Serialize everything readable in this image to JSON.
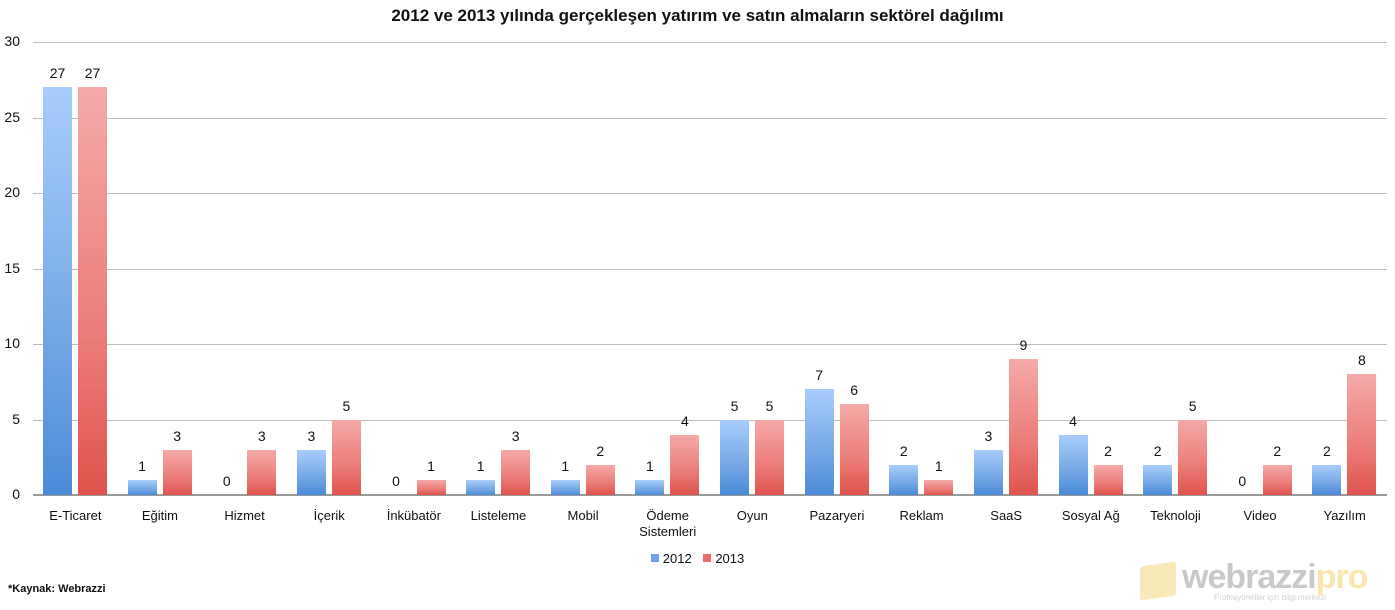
{
  "title": "2012 ve 2013 yılında gerçekleşen yatırım ve satın almaların sektörel dağılımı",
  "y_axis": {
    "ticks": [
      "0",
      "5",
      "10",
      "15",
      "20",
      "25",
      "30"
    ]
  },
  "legend": [
    {
      "label": "2012",
      "color": "#6fa3e4"
    },
    {
      "label": "2013",
      "color": "#e8706b"
    }
  ],
  "source": "*Kaynak: Webrazzi",
  "watermark": {
    "brand": "webrazzi",
    "brand_suffix": "pro",
    "tagline": "Profesyoneller için bilgi merkezi"
  },
  "chart_data": {
    "type": "bar",
    "title": "2012 ve 2013 yılında gerçekleşen yatırım ve satın almaların sektörel dağılımı",
    "xlabel": "",
    "ylabel": "",
    "ylim": [
      0,
      30
    ],
    "yticks": [
      0,
      5,
      10,
      15,
      20,
      25,
      30
    ],
    "grid": true,
    "legend_position": "bottom",
    "categories": [
      "E-Ticaret",
      "Eğitim",
      "Hizmet",
      "İçerik",
      "İnkübatör",
      "Listeleme",
      "Mobil",
      "Ödeme Sistemleri",
      "Oyun",
      "Pazaryeri",
      "Reklam",
      "SaaS",
      "Sosyal Ağ",
      "Teknoloji",
      "Video",
      "Yazılım"
    ],
    "series": [
      {
        "name": "2012",
        "color": "#6fa3e4",
        "values": [
          27,
          1,
          0,
          3,
          0,
          1,
          1,
          1,
          5,
          7,
          2,
          3,
          4,
          2,
          0,
          2
        ]
      },
      {
        "name": "2013",
        "color": "#e8706b",
        "values": [
          27,
          3,
          3,
          5,
          1,
          3,
          2,
          4,
          5,
          6,
          1,
          9,
          2,
          5,
          2,
          8
        ]
      }
    ],
    "data_labels": true,
    "annotations": [
      "*Kaynak: Webrazzi"
    ]
  }
}
